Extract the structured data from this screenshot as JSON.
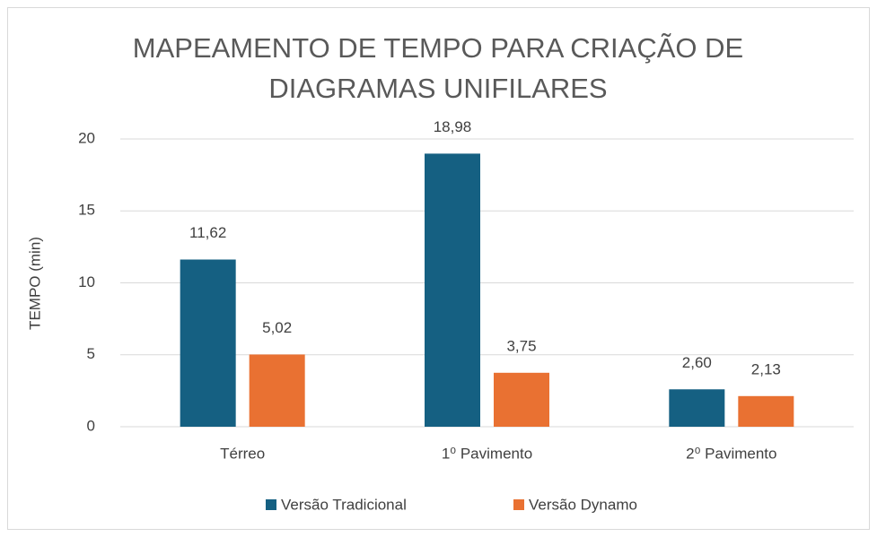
{
  "chart_data": {
    "type": "bar",
    "title": [
      "MAPEAMENTO DE TEMPO PARA CRIAÇÃO DE",
      "DIAGRAMAS UNIFILARES"
    ],
    "y_label": "TEMPO (min)",
    "categories": [
      "Térreo",
      "1⁰ Pavimento",
      "2⁰ Pavimento"
    ],
    "series": [
      {
        "name": "Versão Tradicional",
        "color": "#156082",
        "values": [
          11.62,
          18.98,
          2.6
        ],
        "value_labels": [
          "11,62",
          "18,98",
          "2,60"
        ]
      },
      {
        "name": "Versão Dynamo",
        "color": "#e97132",
        "values": [
          5.02,
          3.75,
          2.13
        ],
        "value_labels": [
          "5,02",
          "3,75",
          "2,13"
        ]
      }
    ],
    "ylim": [
      0,
      20
    ],
    "yticks": [
      0,
      5,
      10,
      15,
      20
    ],
    "grid": true,
    "legend": "bottom"
  }
}
